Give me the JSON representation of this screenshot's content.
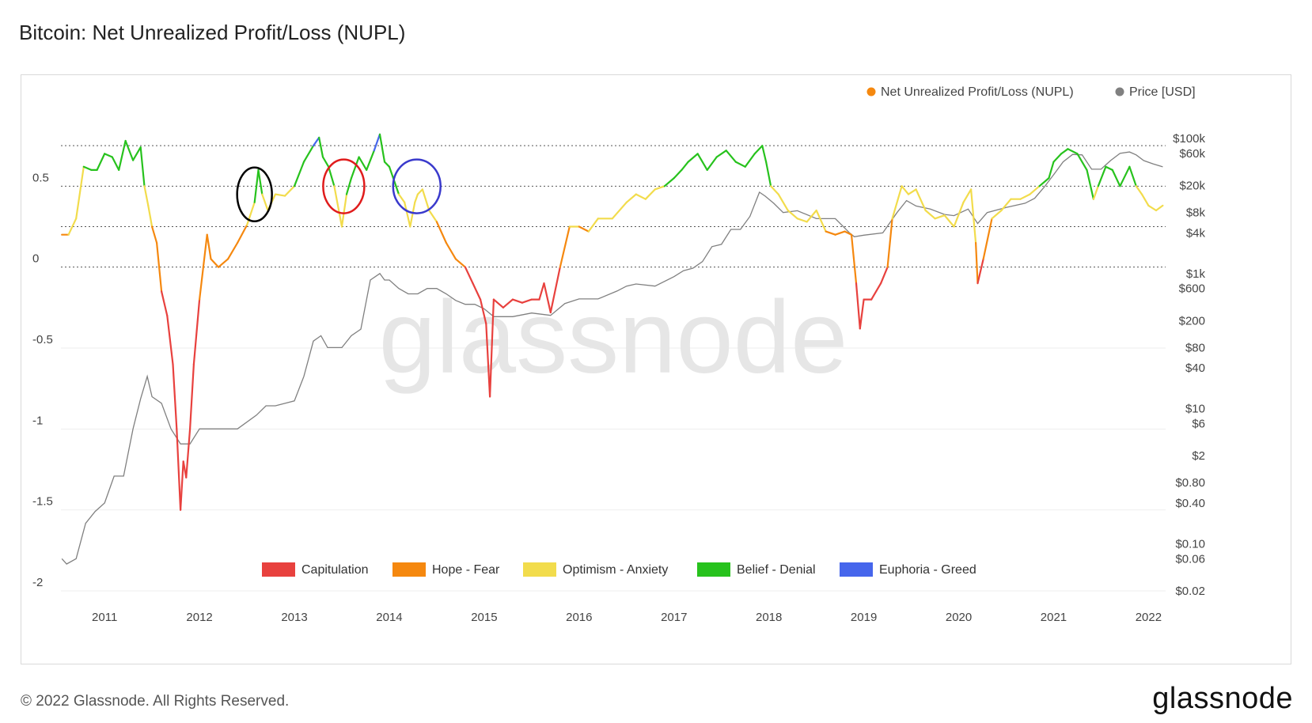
{
  "title": "Bitcoin: Net Unrealized Profit/Loss (NUPL)",
  "watermark": "glassnode",
  "footer": {
    "copyright": "© 2022 Glassnode. All Rights Reserved.",
    "logo": "glassnode"
  },
  "colors": {
    "capitulation": "#e8413e",
    "hope_fear": "#f5880f",
    "optimism_anxiety": "#f2dc4c",
    "belief_denial": "#27c21d",
    "euphoria_greed": "#4666ec",
    "price": "#808080",
    "nupl_marker": "#f5880f"
  },
  "chart_data": {
    "type": "line",
    "title": "Bitcoin: Net Unrealized Profit/Loss (NUPL)",
    "legend_top": [
      {
        "label": "Net Unrealized Profit/Loss (NUPL)",
        "color": "#f5880f"
      },
      {
        "label": "Price [USD]",
        "color": "#808080"
      }
    ],
    "legend_bottom": [
      {
        "label": "Capitulation",
        "color": "#e8413e"
      },
      {
        "label": "Hope - Fear",
        "color": "#f5880f"
      },
      {
        "label": "Optimism - Anxiety",
        "color": "#f2dc4c"
      },
      {
        "label": "Belief - Denial",
        "color": "#27c21d"
      },
      {
        "label": "Euphoria - Greed",
        "color": "#4666ec"
      }
    ],
    "x_ticks": [
      "2011",
      "2012",
      "2013",
      "2014",
      "2015",
      "2016",
      "2017",
      "2018",
      "2019",
      "2020",
      "2021",
      "2022"
    ],
    "xlim": [
      2010.54,
      2022.18
    ],
    "y_left": {
      "ticks": [
        "0.5",
        "0",
        "-0.5",
        "-1",
        "-1.5",
        "-2"
      ],
      "tick_values": [
        0.5,
        0,
        -0.5,
        -1,
        -1.5,
        -2
      ],
      "ylim": [
        -2,
        1
      ]
    },
    "y_right": {
      "scale": "log",
      "ticks": [
        "$100k",
        "$60k",
        "$20k",
        "$8k",
        "$4k",
        "$1k",
        "$600",
        "$200",
        "$80",
        "$40",
        "$10",
        "$6",
        "$2",
        "$0.80",
        "$0.40",
        "$0.10",
        "$0.06",
        "$0.02"
      ],
      "tick_values": [
        100000,
        60000,
        20000,
        8000,
        4000,
        1000,
        600,
        200,
        80,
        40,
        10,
        6,
        2,
        0.8,
        0.4,
        0.1,
        0.06,
        0.02
      ]
    },
    "zone_thresholds": [
      0,
      0.25,
      0.5,
      0.75
    ],
    "series": [
      {
        "name": "Net Unrealized Profit/Loss (NUPL)",
        "x": [
          2010.55,
          2010.62,
          2010.7,
          2010.78,
          2010.86,
          2010.92,
          2011.0,
          2011.08,
          2011.15,
          2011.22,
          2011.3,
          2011.38,
          2011.42,
          2011.46,
          2011.5,
          2011.55,
          2011.6,
          2011.66,
          2011.72,
          2011.76,
          2011.8,
          2011.83,
          2011.86,
          2011.9,
          2011.94,
          2012.0,
          2012.08,
          2012.12,
          2012.2,
          2012.3,
          2012.4,
          2012.5,
          2012.58,
          2012.62,
          2012.66,
          2012.72,
          2012.8,
          2012.9,
          2013.0,
          2013.1,
          2013.2,
          2013.26,
          2013.3,
          2013.36,
          2013.42,
          2013.5,
          2013.55,
          2013.6,
          2013.68,
          2013.76,
          2013.84,
          2013.9,
          2013.95,
          2014.0,
          2014.1,
          2014.16,
          2014.22,
          2014.27,
          2014.3,
          2014.35,
          2014.42,
          2014.5,
          2014.6,
          2014.7,
          2014.8,
          2014.88,
          2014.96,
          2015.02,
          2015.06,
          2015.1,
          2015.2,
          2015.3,
          2015.4,
          2015.5,
          2015.58,
          2015.63,
          2015.7,
          2015.8,
          2015.9,
          2016.0,
          2016.1,
          2016.2,
          2016.35,
          2016.5,
          2016.6,
          2016.7,
          2016.8,
          2016.9,
          2017.0,
          2017.08,
          2017.15,
          2017.25,
          2017.35,
          2017.45,
          2017.55,
          2017.65,
          2017.75,
          2017.85,
          2017.93,
          2017.97,
          2018.02,
          2018.1,
          2018.2,
          2018.3,
          2018.4,
          2018.5,
          2018.6,
          2018.7,
          2018.8,
          2018.87,
          2018.92,
          2018.96,
          2019.0,
          2019.08,
          2019.18,
          2019.25,
          2019.3,
          2019.4,
          2019.47,
          2019.55,
          2019.65,
          2019.75,
          2019.85,
          2019.95,
          2020.05,
          2020.13,
          2020.18,
          2020.2,
          2020.26,
          2020.35,
          2020.45,
          2020.55,
          2020.65,
          2020.75,
          2020.85,
          2020.95,
          2021.0,
          2021.08,
          2021.15,
          2021.25,
          2021.35,
          2021.42,
          2021.47,
          2021.55,
          2021.62,
          2021.7,
          2021.8,
          2021.87,
          2021.93,
          2022.0,
          2022.08,
          2022.15
        ],
        "y": [
          0.2,
          0.2,
          0.3,
          0.62,
          0.6,
          0.6,
          0.7,
          0.68,
          0.6,
          0.78,
          0.66,
          0.74,
          0.5,
          0.38,
          0.25,
          0.15,
          -0.15,
          -0.3,
          -0.6,
          -1.0,
          -1.5,
          -1.2,
          -1.3,
          -1.0,
          -0.6,
          -0.2,
          0.2,
          0.05,
          0.0,
          0.05,
          0.15,
          0.26,
          0.4,
          0.6,
          0.45,
          0.35,
          0.45,
          0.44,
          0.5,
          0.65,
          0.75,
          0.8,
          0.68,
          0.62,
          0.5,
          0.25,
          0.45,
          0.55,
          0.68,
          0.6,
          0.72,
          0.82,
          0.65,
          0.62,
          0.45,
          0.4,
          0.25,
          0.4,
          0.45,
          0.48,
          0.35,
          0.28,
          0.15,
          0.05,
          0.0,
          -0.1,
          -0.2,
          -0.35,
          -0.8,
          -0.2,
          -0.25,
          -0.2,
          -0.22,
          -0.2,
          -0.2,
          -0.1,
          -0.28,
          0.0,
          0.25,
          0.25,
          0.22,
          0.3,
          0.3,
          0.4,
          0.45,
          0.42,
          0.48,
          0.5,
          0.55,
          0.6,
          0.65,
          0.7,
          0.6,
          0.68,
          0.72,
          0.65,
          0.62,
          0.7,
          0.75,
          0.65,
          0.5,
          0.45,
          0.35,
          0.3,
          0.28,
          0.35,
          0.22,
          0.2,
          0.22,
          0.2,
          -0.1,
          -0.38,
          -0.2,
          -0.2,
          -0.1,
          0.0,
          0.3,
          0.5,
          0.45,
          0.48,
          0.35,
          0.3,
          0.32,
          0.25,
          0.4,
          0.48,
          0.15,
          -0.1,
          0.05,
          0.3,
          0.35,
          0.42,
          0.42,
          0.45,
          0.5,
          0.55,
          0.65,
          0.7,
          0.73,
          0.7,
          0.6,
          0.42,
          0.5,
          0.62,
          0.6,
          0.5,
          0.62,
          0.5,
          0.45,
          0.38,
          0.35,
          0.38
        ]
      },
      {
        "name": "Price [USD]",
        "x": [
          2010.55,
          2010.6,
          2010.7,
          2010.8,
          2010.9,
          2011.0,
          2011.1,
          2011.2,
          2011.3,
          2011.38,
          2011.45,
          2011.5,
          2011.6,
          2011.7,
          2011.8,
          2011.9,
          2012.0,
          2012.2,
          2012.4,
          2012.6,
          2012.7,
          2012.8,
          2013.0,
          2013.1,
          2013.2,
          2013.28,
          2013.35,
          2013.5,
          2013.6,
          2013.7,
          2013.8,
          2013.9,
          2013.95,
          2014.0,
          2014.1,
          2014.2,
          2014.3,
          2014.4,
          2014.5,
          2014.6,
          2014.7,
          2014.8,
          2014.9,
          2015.0,
          2015.1,
          2015.3,
          2015.5,
          2015.7,
          2015.85,
          2016.0,
          2016.2,
          2016.4,
          2016.5,
          2016.6,
          2016.8,
          2017.0,
          2017.1,
          2017.2,
          2017.3,
          2017.4,
          2017.5,
          2017.6,
          2017.7,
          2017.8,
          2017.9,
          2017.96,
          2018.05,
          2018.15,
          2018.3,
          2018.5,
          2018.7,
          2018.85,
          2018.9,
          2019.0,
          2019.2,
          2019.35,
          2019.45,
          2019.55,
          2019.7,
          2019.85,
          2019.95,
          2020.1,
          2020.2,
          2020.3,
          2020.5,
          2020.7,
          2020.8,
          2020.9,
          2021.0,
          2021.1,
          2021.2,
          2021.3,
          2021.4,
          2021.5,
          2021.6,
          2021.7,
          2021.8,
          2021.87,
          2021.95,
          2022.05,
          2022.15
        ],
        "y": [
          0.06,
          0.05,
          0.06,
          0.2,
          0.3,
          0.4,
          1.0,
          1.0,
          5.0,
          14,
          30,
          15,
          12,
          5,
          3,
          3,
          5,
          5,
          5,
          8,
          11,
          11,
          13,
          30,
          100,
          120,
          80,
          80,
          120,
          150,
          800,
          1000,
          800,
          800,
          600,
          500,
          500,
          600,
          600,
          500,
          400,
          350,
          350,
          300,
          230,
          230,
          260,
          240,
          360,
          420,
          420,
          550,
          650,
          700,
          650,
          900,
          1100,
          1200,
          1500,
          2500,
          2700,
          4500,
          4500,
          7000,
          16000,
          14000,
          11000,
          8000,
          8500,
          6500,
          6500,
          4000,
          3500,
          3700,
          4000,
          8000,
          12000,
          10000,
          9000,
          7500,
          7200,
          9000,
          5500,
          8000,
          9500,
          11000,
          13000,
          19000,
          29000,
          45000,
          58000,
          57000,
          35000,
          35000,
          47000,
          60000,
          63000,
          57000,
          47000,
          42000,
          38000
        ]
      }
    ],
    "annotations": [
      {
        "shape": "ellipse",
        "color": "#000000",
        "x": 2012.58
      },
      {
        "shape": "ellipse",
        "color": "#e01c1c",
        "x": 2013.52
      },
      {
        "shape": "ellipse",
        "color": "#3a3acc",
        "x": 2014.29
      }
    ]
  }
}
